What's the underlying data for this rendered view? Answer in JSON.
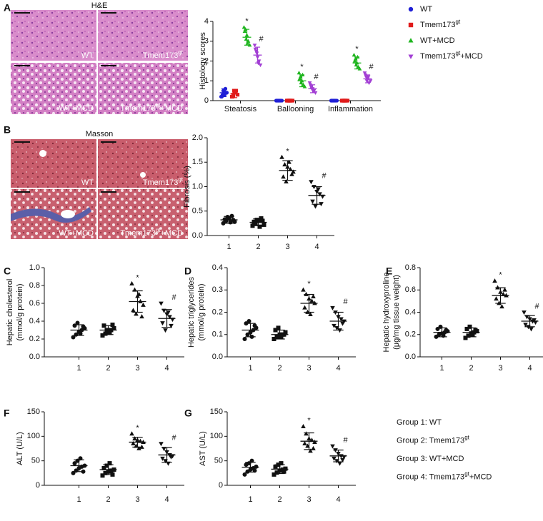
{
  "images": [
    {
      "title": "H&E",
      "labels": [
        "WT",
        {
          "text": "Tmem173",
          "sup": "gt"
        },
        "WT+MCD",
        {
          "text": "Tmem173",
          "sup": "gt",
          "after": "+MCD"
        }
      ]
    },
    {
      "title": "Masson",
      "labels": [
        "WT",
        {
          "text": "Tmem173",
          "sup": "gt"
        },
        "WT+MCD",
        {
          "text": "Tmem173",
          "sup": "gt",
          "after": "+MCD"
        }
      ]
    }
  ],
  "group_legend": [
    {
      "text": "Group 1: WT"
    },
    {
      "text": "Group 2: Tmem173",
      "sup": "gt"
    },
    {
      "text": "Group 3: WT+MCD"
    },
    {
      "text": "Group 4: Tmem173",
      "sup": "gt",
      "after": "+MCD"
    }
  ],
  "chart_data": [
    {
      "type": "dotplot",
      "panel": "A",
      "ylabel": "Histology scores",
      "categories": [
        "Steatosis",
        "Ballooning",
        "Inflammation"
      ],
      "ylim": [
        0,
        4
      ],
      "yticks": [
        0,
        1,
        2,
        3,
        4
      ],
      "series": [
        {
          "name": "WT",
          "color": "#1f1fd6",
          "marker": "circle",
          "values": [
            [
              0.2,
              0.3,
              0.5,
              0.6,
              0.4,
              0.2,
              0.5,
              0.3
            ],
            [
              0,
              0,
              0,
              0,
              0,
              0,
              0,
              0
            ],
            [
              0,
              0,
              0,
              0,
              0,
              0,
              0,
              0
            ]
          ],
          "mean": [
            0.4,
            0,
            0
          ],
          "sd": [
            0.2,
            0,
            0
          ]
        },
        {
          "name": {
            "text": "Tmem173",
            "sup": "gt"
          },
          "color": "#e01b1b",
          "marker": "square",
          "values": [
            [
              0.2,
              0.3,
              0.4,
              0.5,
              0.3,
              0.2,
              0.5,
              0.4
            ],
            [
              0,
              0,
              0,
              0,
              0,
              0,
              0,
              0
            ],
            [
              0,
              0,
              0,
              0,
              0,
              0,
              0,
              0
            ]
          ],
          "mean": [
            0.35,
            0,
            0
          ],
          "sd": [
            0.2,
            0,
            0
          ]
        },
        {
          "name": "WT+MCD",
          "color": "#1fb51f",
          "marker": "triangle",
          "values": [
            [
              3.7,
              3.6,
              3.3,
              3.0,
              2.8,
              3.5,
              3.1,
              2.9
            ],
            [
              1.4,
              1.2,
              1.0,
              0.8,
              0.7,
              1.1,
              0.9,
              1.3
            ],
            [
              2.3,
              2.1,
              1.9,
              1.7,
              1.6,
              2.0,
              1.8,
              2.2
            ]
          ],
          "mean": [
            3.2,
            1.0,
            1.9
          ],
          "sd": [
            0.4,
            0.3,
            0.3
          ],
          "annotations": [
            "*",
            "*",
            "*"
          ]
        },
        {
          "name": {
            "text": "Tmem173",
            "sup": "gt",
            "after": "+MCD"
          },
          "color": "#a23fd4",
          "marker": "triangle-down",
          "values": [
            [
              2.8,
              2.5,
              2.2,
              2.0,
              1.8,
              2.6,
              2.4,
              1.9
            ],
            [
              0.9,
              0.7,
              0.6,
              0.5,
              0.4,
              0.8,
              0.6,
              0.5
            ],
            [
              1.4,
              1.2,
              1.1,
              0.9,
              1.0,
              1.3,
              1.0,
              1.2
            ]
          ],
          "mean": [
            2.3,
            0.6,
            1.1
          ],
          "sd": [
            0.4,
            0.2,
            0.2
          ],
          "annotations": [
            "#",
            "#",
            "#"
          ]
        }
      ]
    },
    {
      "type": "dotplot",
      "panel": "B",
      "ylabel": "Fibrosis (%)",
      "color": "#111",
      "categories": [
        "1",
        "2",
        "3",
        "4"
      ],
      "annotations": [
        null,
        null,
        "*",
        "#"
      ],
      "ylim": [
        0,
        2
      ],
      "yticks": [
        {
          "value": 0,
          "label": "0.0"
        },
        0.5,
        {
          "value": 1,
          "label": "1.0"
        },
        1.5,
        {
          "value": 2,
          "label": "2.0"
        }
      ],
      "groups": [
        {
          "marker": "circle",
          "values": [
            0.25,
            0.3,
            0.35,
            0.4,
            0.28,
            0.33,
            0.38,
            0.27,
            0.32
          ],
          "mean": 0.32,
          "sd": 0.07
        },
        {
          "marker": "square",
          "values": [
            0.2,
            0.25,
            0.3,
            0.35,
            0.22,
            0.28,
            0.32,
            0.18,
            0.3
          ],
          "mean": 0.27,
          "sd": 0.07
        },
        {
          "marker": "triangle",
          "values": [
            1.6,
            1.45,
            1.4,
            1.35,
            1.3,
            1.2,
            1.1,
            1.5,
            1.25
          ],
          "mean": 1.33,
          "sd": 0.2
        },
        {
          "marker": "triangle-down",
          "values": [
            1.1,
            1.0,
            0.9,
            0.85,
            0.8,
            0.7,
            0.6,
            0.95,
            0.65
          ],
          "mean": 0.82,
          "sd": 0.18
        }
      ]
    },
    {
      "type": "dotplot",
      "panel": "C",
      "ylabel": [
        "Hepatic cholesterol",
        "(mmol/g protein)"
      ],
      "color": "#111",
      "categories": [
        "1",
        "2",
        "3",
        "4"
      ],
      "annotations": [
        null,
        null,
        "*",
        "#"
      ],
      "ylim": [
        0,
        1
      ],
      "yticks": [
        {
          "value": 0,
          "label": "0.0"
        },
        0.2,
        0.4,
        0.6,
        0.8,
        {
          "value": 1,
          "label": "1.0"
        }
      ],
      "groups": [
        {
          "marker": "circle",
          "values": [
            0.22,
            0.25,
            0.28,
            0.3,
            0.32,
            0.35,
            0.38,
            0.26,
            0.34
          ],
          "mean": 0.3,
          "sd": 0.06
        },
        {
          "marker": "square",
          "values": [
            0.24,
            0.26,
            0.28,
            0.3,
            0.32,
            0.35,
            0.3,
            0.27,
            0.36
          ],
          "mean": 0.3,
          "sd": 0.05
        },
        {
          "marker": "triangle",
          "values": [
            0.82,
            0.75,
            0.68,
            0.62,
            0.58,
            0.52,
            0.48,
            0.7,
            0.45
          ],
          "mean": 0.62,
          "sd": 0.12
        },
        {
          "marker": "triangle-down",
          "values": [
            0.6,
            0.52,
            0.48,
            0.45,
            0.42,
            0.38,
            0.3,
            0.5,
            0.35
          ],
          "mean": 0.43,
          "sd": 0.1
        }
      ]
    },
    {
      "type": "dotplot",
      "panel": "D",
      "ylabel": [
        "Hepatic triglycerides",
        "(mmol/g protein)"
      ],
      "color": "#111",
      "categories": [
        "1",
        "2",
        "3",
        "4"
      ],
      "annotations": [
        null,
        null,
        "*",
        "#"
      ],
      "ylim": [
        0,
        0.4
      ],
      "yticks": [
        {
          "value": 0,
          "label": "0.0"
        },
        0.1,
        0.2,
        0.3,
        0.4
      ],
      "groups": [
        {
          "marker": "circle",
          "values": [
            0.08,
            0.1,
            0.11,
            0.12,
            0.13,
            0.15,
            0.16,
            0.09,
            0.14
          ],
          "mean": 0.12,
          "sd": 0.03
        },
        {
          "marker": "square",
          "values": [
            0.08,
            0.09,
            0.1,
            0.1,
            0.11,
            0.12,
            0.13,
            0.09,
            0.1
          ],
          "mean": 0.1,
          "sd": 0.02
        },
        {
          "marker": "triangle",
          "values": [
            0.3,
            0.28,
            0.26,
            0.25,
            0.24,
            0.22,
            0.2,
            0.19,
            0.27
          ],
          "mean": 0.24,
          "sd": 0.04
        },
        {
          "marker": "triangle-down",
          "values": [
            0.22,
            0.2,
            0.18,
            0.17,
            0.16,
            0.14,
            0.13,
            0.12,
            0.15
          ],
          "mean": 0.16,
          "sd": 0.04
        }
      ]
    },
    {
      "type": "dotplot",
      "panel": "E",
      "ylabel": [
        "Hepatic hydroxyproline",
        "(μg/mg tissue weight)"
      ],
      "color": "#111",
      "categories": [
        "1",
        "2",
        "3",
        "4"
      ],
      "annotations": [
        null,
        null,
        "*",
        "#"
      ],
      "ylim": [
        0,
        0.8
      ],
      "yticks": [
        {
          "value": 0,
          "label": "0.0"
        },
        0.2,
        0.4,
        0.6,
        0.8
      ],
      "groups": [
        {
          "marker": "circle",
          "values": [
            0.18,
            0.2,
            0.21,
            0.22,
            0.23,
            0.25,
            0.27,
            0.19,
            0.24
          ],
          "mean": 0.22,
          "sd": 0.04
        },
        {
          "marker": "square",
          "values": [
            0.17,
            0.19,
            0.21,
            0.22,
            0.23,
            0.25,
            0.27,
            0.2,
            0.24
          ],
          "mean": 0.22,
          "sd": 0.04
        },
        {
          "marker": "triangle",
          "values": [
            0.68,
            0.62,
            0.58,
            0.56,
            0.55,
            0.52,
            0.48,
            0.45,
            0.6
          ],
          "mean": 0.55,
          "sd": 0.07
        },
        {
          "marker": "triangle-down",
          "values": [
            0.4,
            0.36,
            0.34,
            0.32,
            0.31,
            0.29,
            0.27,
            0.25,
            0.33
          ],
          "mean": 0.32,
          "sd": 0.05
        }
      ]
    },
    {
      "type": "dotplot",
      "panel": "F",
      "ylabel": "ALT (U/L)",
      "color": "#111",
      "categories": [
        "1",
        "2",
        "3",
        "4"
      ],
      "annotations": [
        null,
        null,
        "*",
        "#"
      ],
      "ylim": [
        0,
        150
      ],
      "yticks": [
        0,
        50,
        100,
        150
      ],
      "groups": [
        {
          "marker": "circle",
          "values": [
            25,
            30,
            35,
            38,
            40,
            45,
            50,
            55,
            28
          ],
          "mean": 40,
          "sd": 12
        },
        {
          "marker": "square",
          "values": [
            20,
            25,
            28,
            30,
            32,
            35,
            40,
            45,
            22
          ],
          "mean": 32,
          "sd": 10
        },
        {
          "marker": "triangle",
          "values": [
            105,
            95,
            92,
            90,
            88,
            85,
            80,
            75,
            78
          ],
          "mean": 88,
          "sd": 10
        },
        {
          "marker": "triangle-down",
          "values": [
            85,
            75,
            68,
            62,
            60,
            55,
            50,
            45,
            58
          ],
          "mean": 62,
          "sd": 15
        }
      ]
    },
    {
      "type": "dotplot",
      "panel": "G",
      "ylabel": "AST (U/L)",
      "color": "#111",
      "categories": [
        "1",
        "2",
        "3",
        "4"
      ],
      "annotations": [
        null,
        null,
        "*",
        "#"
      ],
      "ylim": [
        0,
        150
      ],
      "yticks": [
        0,
        50,
        100,
        150
      ],
      "groups": [
        {
          "marker": "circle",
          "values": [
            22,
            28,
            32,
            35,
            38,
            42,
            45,
            50,
            30
          ],
          "mean": 37,
          "sd": 10
        },
        {
          "marker": "square",
          "values": [
            22,
            26,
            30,
            32,
            34,
            38,
            42,
            45,
            28
          ],
          "mean": 33,
          "sd": 9
        },
        {
          "marker": "triangle",
          "values": [
            120,
            105,
            95,
            92,
            88,
            85,
            80,
            70,
            75
          ],
          "mean": 90,
          "sd": 17
        },
        {
          "marker": "triangle-down",
          "values": [
            80,
            72,
            65,
            60,
            58,
            55,
            50,
            45,
            52
          ],
          "mean": 60,
          "sd": 12
        }
      ]
    }
  ]
}
